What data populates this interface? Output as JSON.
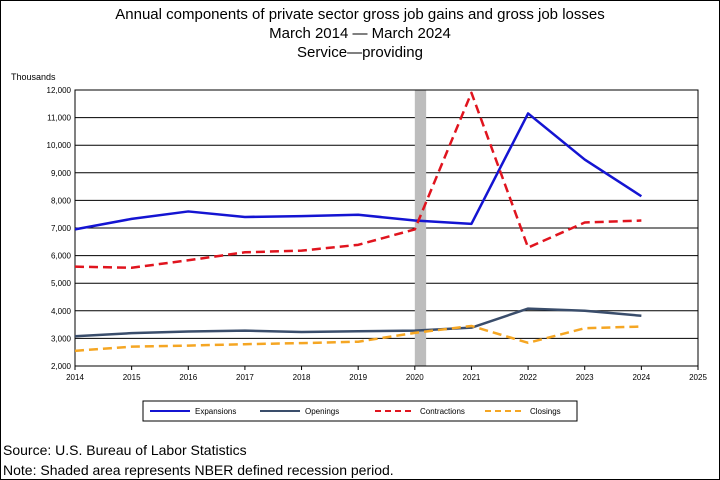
{
  "chart_data": {
    "type": "line",
    "title": "Annual components of private sector gross job gains and gross job losses",
    "subtitle_dates": "March 2014 — March 2024",
    "subtitle_sector": "Service—providing",
    "ylabel": "Thousands",
    "xlabel": "",
    "x": [
      2014,
      2015,
      2016,
      2017,
      2018,
      2019,
      2020,
      2021,
      2022,
      2023,
      2024
    ],
    "xlim": [
      2014,
      2025
    ],
    "ylim": [
      2000,
      12000
    ],
    "x_ticks": [
      "2014",
      "2015",
      "2016",
      "2017",
      "2018",
      "2019",
      "2020",
      "2021",
      "2022",
      "2023",
      "2024",
      "2025"
    ],
    "y_ticks": [
      "2,000",
      "3,000",
      "4,000",
      "5,000",
      "6,000",
      "7,000",
      "8,000",
      "9,000",
      "10,000",
      "11,000",
      "12,000"
    ],
    "recession_shading": [
      2020.0,
      2020.2
    ],
    "grid": "horizontal",
    "legend_position": "bottom",
    "series": [
      {
        "name": "Expansions",
        "color": "#1414d2",
        "style": "solid",
        "values": [
          6950,
          7330,
          7600,
          7400,
          7430,
          7480,
          7270,
          7150,
          11150,
          9480,
          8150
        ]
      },
      {
        "name": "Openings",
        "color": "#3a4d6b",
        "style": "solid",
        "values": [
          3080,
          3190,
          3250,
          3280,
          3230,
          3260,
          3280,
          3390,
          4080,
          4000,
          3820
        ]
      },
      {
        "name": "Contractions",
        "color": "#e0141e",
        "style": "dashed",
        "values": [
          5600,
          5560,
          5830,
          6120,
          6180,
          6390,
          6950,
          11900,
          6290,
          7200,
          7270
        ]
      },
      {
        "name": "Closings",
        "color": "#f5a623",
        "style": "dashed",
        "values": [
          2550,
          2700,
          2740,
          2790,
          2830,
          2880,
          3200,
          3450,
          2840,
          3370,
          3430
        ]
      }
    ]
  },
  "notes": {
    "source": "Source: U.S. Bureau of Labor Statistics",
    "note": "Note: Shaded area represents NBER defined recession period."
  }
}
